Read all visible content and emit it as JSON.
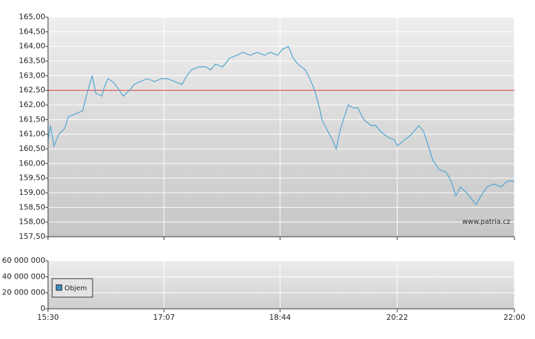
{
  "chart_data": [
    {
      "type": "line",
      "annotation": "www.patria.cz",
      "xlim": [
        "15:30",
        "22:00"
      ],
      "ylim": [
        157.5,
        165
      ],
      "yticks": [
        {
          "value": 157.5,
          "label": "157,50"
        },
        {
          "value": 158,
          "label": "158,00"
        },
        {
          "value": 158.5,
          "label": "158,50"
        },
        {
          "value": 159,
          "label": "159,00"
        },
        {
          "value": 159.5,
          "label": "159,50"
        },
        {
          "value": 160,
          "label": "160,00"
        },
        {
          "value": 160.5,
          "label": "160,50"
        },
        {
          "value": 161,
          "label": "161,00"
        },
        {
          "value": 161.5,
          "label": "161,50"
        },
        {
          "value": 162,
          "label": "162,00"
        },
        {
          "value": 162.5,
          "label": "162,50"
        },
        {
          "value": 163,
          "label": "163,00"
        },
        {
          "value": 163.5,
          "label": "163,50"
        },
        {
          "value": 164,
          "label": "164,00"
        },
        {
          "value": 164.5,
          "label": "164,50"
        },
        {
          "value": 165,
          "label": "165,00"
        }
      ],
      "reference_line": {
        "value": 162.5,
        "color": "#d9302a"
      },
      "grid": true,
      "color": "#4aa3d0",
      "x": [
        "15:30",
        "15:32",
        "15:35",
        "15:39",
        "15:44",
        "15:47",
        "15:53",
        "15:59",
        "16:02",
        "16:04",
        "16:07",
        "16:10",
        "16:15",
        "16:17",
        "16:20",
        "16:24",
        "16:28",
        "16:33",
        "16:38",
        "16:42",
        "16:47",
        "16:53",
        "16:59",
        "17:05",
        "17:10",
        "17:16",
        "17:22",
        "17:26",
        "17:30",
        "17:36",
        "17:42",
        "17:46",
        "17:50",
        "17:56",
        "18:02",
        "18:08",
        "18:13",
        "18:19",
        "18:25",
        "18:31",
        "18:36",
        "18:42",
        "18:46",
        "18:51",
        "18:55",
        "18:59",
        "19:05",
        "19:09",
        "19:13",
        "19:17",
        "19:19",
        "19:24",
        "19:28",
        "19:31",
        "19:34",
        "19:37",
        "19:41",
        "19:45",
        "19:49",
        "19:54",
        "20:00",
        "20:04",
        "20:08",
        "20:14",
        "20:20",
        "20:22",
        "20:28",
        "20:34",
        "20:40",
        "20:44",
        "20:48",
        "20:52",
        "20:57",
        "21:03",
        "21:07",
        "21:11",
        "21:15",
        "21:20",
        "21:24",
        "21:28",
        "21:32",
        "21:37",
        "21:43",
        "21:49",
        "21:54",
        "22:00"
      ],
      "values": [
        160.8,
        161.3,
        160.6,
        161.0,
        161.2,
        161.6,
        161.7,
        161.8,
        162.3,
        162.6,
        163.0,
        162.4,
        162.3,
        162.6,
        162.9,
        162.8,
        162.6,
        162.3,
        162.5,
        162.7,
        162.8,
        162.9,
        162.8,
        162.9,
        162.9,
        162.8,
        162.7,
        163.0,
        163.2,
        163.3,
        163.3,
        163.2,
        163.4,
        163.3,
        163.6,
        163.7,
        163.8,
        163.7,
        163.8,
        163.7,
        163.8,
        163.7,
        163.9,
        164.0,
        163.6,
        163.4,
        163.2,
        162.9,
        162.5,
        161.9,
        161.5,
        161.1,
        160.8,
        160.5,
        161.1,
        161.5,
        162.0,
        161.9,
        161.9,
        161.5,
        161.3,
        161.3,
        161.1,
        160.9,
        160.8,
        160.6,
        160.8,
        161.0,
        161.3,
        161.1,
        160.6,
        160.1,
        159.8,
        159.7,
        159.4,
        158.9,
        159.2,
        159.0,
        158.8,
        158.6,
        158.9,
        159.2,
        159.3,
        159.2,
        159.4,
        159.4
      ]
    },
    {
      "type": "bar",
      "xlim": [
        "15:30",
        "22:00"
      ],
      "xticks": [
        "15:30",
        "17:07",
        "18:44",
        "20:22",
        "22:00"
      ],
      "ylim": [
        0,
        60000000
      ],
      "yticks": [
        0,
        {
          "value": 20000000,
          "label": "20 000 000"
        },
        {
          "value": 40000000,
          "label": "40 000 000"
        },
        {
          "value": 60000000,
          "label": "60 000 000"
        }
      ],
      "grid": true,
      "series": [
        {
          "name": "Objem",
          "color": "#3d8fc6"
        }
      ]
    }
  ]
}
